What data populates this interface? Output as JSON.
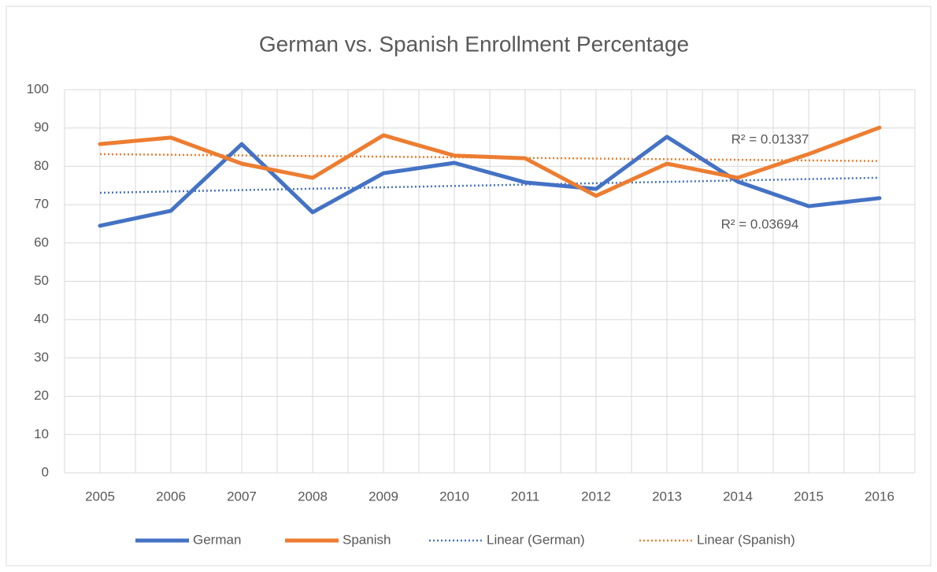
{
  "chart_data": {
    "type": "line",
    "title": "German vs. Spanish Enrollment Percentage",
    "categories": [
      "2005",
      "2006",
      "2007",
      "2008",
      "2009",
      "2010",
      "2011",
      "2012",
      "2013",
      "2014",
      "2015",
      "2016"
    ],
    "series": [
      {
        "name": "German",
        "color": "#4472c4",
        "values": [
          64.5,
          68.4,
          85.8,
          68.0,
          78.2,
          80.9,
          75.8,
          74.1,
          87.7,
          76.0,
          69.6,
          71.7
        ]
      },
      {
        "name": "Spanish",
        "color": "#ed7d31",
        "values": [
          85.8,
          87.5,
          80.7,
          77.0,
          88.1,
          82.8,
          82.1,
          72.3,
          80.7,
          77.0,
          83.2,
          90.1
        ]
      }
    ],
    "trendlines": [
      {
        "name": "Linear  (German)",
        "series": 0,
        "color": "#4472c4",
        "label": "R² = 0.03694"
      },
      {
        "name": "Linear  (Spanish)",
        "series": 1,
        "color": "#ed7d31",
        "label": "R² = 0.01337"
      }
    ],
    "ylim": [
      0,
      100
    ],
    "yticks": [
      0,
      10,
      20,
      30,
      40,
      50,
      60,
      70,
      80,
      90,
      100
    ],
    "grid": true,
    "legend": "bottom"
  }
}
